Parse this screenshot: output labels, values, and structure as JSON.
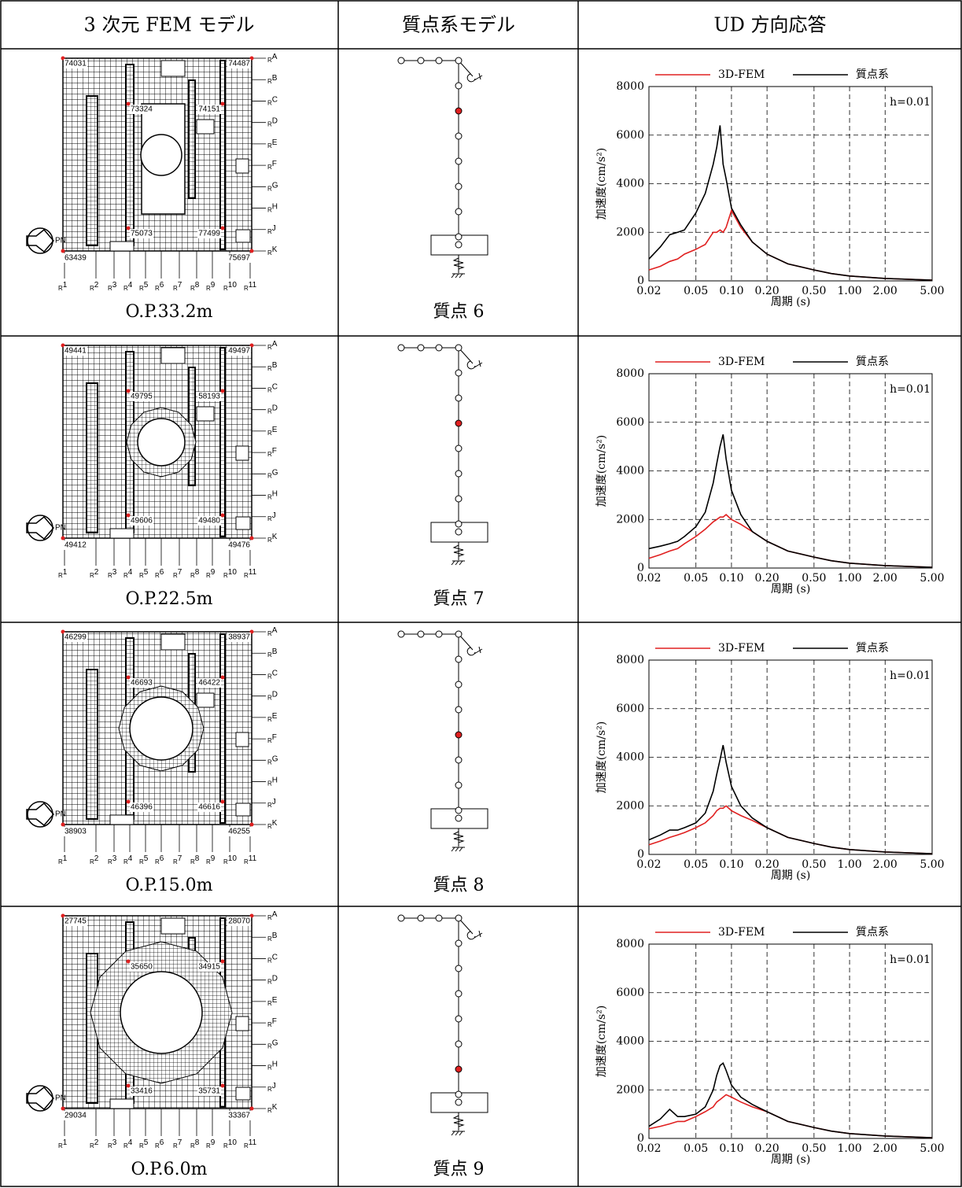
{
  "table": {
    "headers": [
      "3 次元 FEM モデル",
      "質点系モデル",
      "UD 方向応答"
    ],
    "grid_prefix": "R",
    "grid_rows": [
      "A",
      "B",
      "C",
      "D",
      "E",
      "F",
      "G",
      "H",
      "J",
      "K"
    ],
    "grid_columns": [
      "1",
      "2",
      "3",
      "4",
      "5",
      "6",
      "7",
      "8",
      "9",
      "10",
      "11"
    ],
    "direction": "PN",
    "rows": [
      {
        "level": "O.P.33.2m",
        "nodes": [
          "74031",
          "74487",
          "73324",
          "74151",
          "75073",
          "77499",
          "63439",
          "75697"
        ],
        "mass_point": "質点 6"
      },
      {
        "level": "O.P.22.5m",
        "nodes": [
          "49441",
          "49497",
          "49795",
          "58193",
          "49606",
          "49480",
          "49412",
          "49476"
        ],
        "mass_point": "質点 7"
      },
      {
        "level": "O.P.15.0m",
        "nodes": [
          "46299",
          "38937",
          "46693",
          "46422",
          "46396",
          "46616",
          "38903",
          "46255"
        ],
        "mass_point": "質点 8"
      },
      {
        "level": "O.P.6.0m",
        "nodes": [
          "27745",
          "28070",
          "35650",
          "34915",
          "33416",
          "35731",
          "29034",
          "33367"
        ],
        "mass_point": "質点 9"
      }
    ]
  },
  "chart_data": [
    {
      "type": "line",
      "xlabel": "周期 (s)",
      "ylabel": "加速度(cm/s²)",
      "annotation": "h=0.01",
      "log_x": true,
      "grid": true,
      "legend": "top",
      "x": [
        0.02,
        0.025,
        0.03,
        0.035,
        0.04,
        0.05,
        0.06,
        0.07,
        0.075,
        0.08,
        0.085,
        0.09,
        0.1,
        0.12,
        0.15,
        0.2,
        0.3,
        0.5,
        0.7,
        1.0,
        2.0,
        5.0
      ],
      "xlim": [
        0.02,
        5
      ],
      "xticks": [
        0.02,
        0.05,
        {
          "value": 0.1,
          "label": "0.10"
        },
        {
          "value": 0.2,
          "label": "0.20"
        },
        {
          "value": 0.5,
          "label": "0.50"
        },
        {
          "value": 1,
          "label": "1.00"
        },
        {
          "value": 2,
          "label": "2.00"
        },
        {
          "value": 5,
          "label": "5.00"
        }
      ],
      "ylim": [
        0,
        8000
      ],
      "yticks": [
        0,
        2000,
        4000,
        6000,
        8000
      ],
      "series": [
        {
          "name": "3D-FEM",
          "color": "#e02020",
          "values": [
            450,
            600,
            800,
            900,
            1100,
            1300,
            1500,
            2000,
            2000,
            2100,
            2000,
            2200,
            2900,
            2200,
            1600,
            1100,
            700,
            450,
            300,
            200,
            100,
            30
          ]
        },
        {
          "name": "質点系",
          "color": "#000000",
          "values": [
            900,
            1400,
            1900,
            2000,
            2100,
            2800,
            3600,
            4800,
            5500,
            6400,
            4800,
            4200,
            3000,
            2300,
            1600,
            1100,
            700,
            450,
            300,
            200,
            100,
            30
          ]
        }
      ]
    },
    {
      "type": "line",
      "xlabel": "周期 (s)",
      "ylabel": "加速度(cm/s²)",
      "annotation": "h=0.01",
      "log_x": true,
      "grid": true,
      "legend": "top",
      "x": [
        0.02,
        0.025,
        0.03,
        0.035,
        0.04,
        0.05,
        0.06,
        0.07,
        0.075,
        0.08,
        0.085,
        0.09,
        0.1,
        0.12,
        0.15,
        0.2,
        0.3,
        0.5,
        0.7,
        1.0,
        2.0,
        5.0
      ],
      "xlim": [
        0.02,
        5
      ],
      "xticks": [
        0.02,
        0.05,
        {
          "value": 0.1,
          "label": "0.10"
        },
        {
          "value": 0.2,
          "label": "0.20"
        },
        {
          "value": 0.5,
          "label": "0.50"
        },
        {
          "value": 1,
          "label": "1.00"
        },
        {
          "value": 2,
          "label": "2.00"
        },
        {
          "value": 5,
          "label": "5.00"
        }
      ],
      "ylim": [
        0,
        8000
      ],
      "yticks": [
        0,
        2000,
        4000,
        6000,
        8000
      ],
      "series": [
        {
          "name": "3D-FEM",
          "color": "#e02020",
          "values": [
            400,
            550,
            700,
            800,
            1000,
            1300,
            1600,
            1900,
            2000,
            2100,
            2100,
            2200,
            2000,
            1800,
            1500,
            1100,
            700,
            450,
            300,
            200,
            100,
            30
          ]
        },
        {
          "name": "質点系",
          "color": "#000000",
          "values": [
            800,
            900,
            1000,
            1100,
            1300,
            1700,
            2300,
            3500,
            4300,
            5000,
            5500,
            4500,
            3200,
            2200,
            1500,
            1100,
            700,
            450,
            300,
            200,
            100,
            30
          ]
        }
      ]
    },
    {
      "type": "line",
      "xlabel": "周期 (s)",
      "ylabel": "加速度(cm/s²)",
      "annotation": "h=0.01",
      "log_x": true,
      "grid": true,
      "legend": "top",
      "x": [
        0.02,
        0.025,
        0.03,
        0.035,
        0.04,
        0.05,
        0.06,
        0.07,
        0.075,
        0.08,
        0.085,
        0.09,
        0.1,
        0.12,
        0.15,
        0.2,
        0.3,
        0.5,
        0.7,
        1.0,
        2.0,
        5.0
      ],
      "xlim": [
        0.02,
        5
      ],
      "xticks": [
        0.02,
        0.05,
        {
          "value": 0.1,
          "label": "0.10"
        },
        {
          "value": 0.2,
          "label": "0.20"
        },
        {
          "value": 0.5,
          "label": "0.50"
        },
        {
          "value": 1,
          "label": "1.00"
        },
        {
          "value": 2,
          "label": "2.00"
        },
        {
          "value": 5,
          "label": "5.00"
        }
      ],
      "ylim": [
        0,
        8000
      ],
      "yticks": [
        0,
        2000,
        4000,
        6000,
        8000
      ],
      "series": [
        {
          "name": "3D-FEM",
          "color": "#e02020",
          "values": [
            400,
            550,
            700,
            800,
            900,
            1100,
            1300,
            1600,
            1800,
            1900,
            1900,
            2000,
            1800,
            1600,
            1400,
            1100,
            700,
            450,
            300,
            200,
            100,
            30
          ]
        },
        {
          "name": "質点系",
          "color": "#000000",
          "values": [
            600,
            800,
            1000,
            1000,
            1100,
            1300,
            1700,
            2600,
            3300,
            3900,
            4500,
            3800,
            2800,
            2000,
            1500,
            1100,
            700,
            450,
            300,
            200,
            100,
            30
          ]
        }
      ]
    },
    {
      "type": "line",
      "xlabel": "周期 (s)",
      "ylabel": "加速度(cm/s²)",
      "annotation": "h=0.01",
      "log_x": true,
      "grid": true,
      "legend": "top",
      "x": [
        0.02,
        0.025,
        0.03,
        0.035,
        0.04,
        0.05,
        0.06,
        0.07,
        0.075,
        0.08,
        0.085,
        0.09,
        0.1,
        0.12,
        0.15,
        0.2,
        0.3,
        0.5,
        0.7,
        1.0,
        2.0,
        5.0
      ],
      "xlim": [
        0.02,
        5
      ],
      "xticks": [
        0.02,
        0.05,
        {
          "value": 0.1,
          "label": "0.10"
        },
        {
          "value": 0.2,
          "label": "0.20"
        },
        {
          "value": 0.5,
          "label": "0.50"
        },
        {
          "value": 1,
          "label": "1.00"
        },
        {
          "value": 2,
          "label": "2.00"
        },
        {
          "value": 5,
          "label": "5.00"
        }
      ],
      "ylim": [
        0,
        8000
      ],
      "yticks": [
        0,
        2000,
        4000,
        6000,
        8000
      ],
      "series": [
        {
          "name": "3D-FEM",
          "color": "#e02020",
          "values": [
            400,
            500,
            600,
            700,
            700,
            900,
            1100,
            1300,
            1500,
            1600,
            1700,
            1800,
            1700,
            1500,
            1300,
            1100,
            700,
            450,
            300,
            200,
            100,
            30
          ]
        },
        {
          "name": "質点系",
          "color": "#000000",
          "values": [
            500,
            800,
            1200,
            900,
            900,
            1000,
            1300,
            2000,
            2600,
            3000,
            3100,
            2800,
            2200,
            1700,
            1400,
            1100,
            700,
            450,
            300,
            200,
            100,
            30
          ]
        }
      ]
    }
  ]
}
